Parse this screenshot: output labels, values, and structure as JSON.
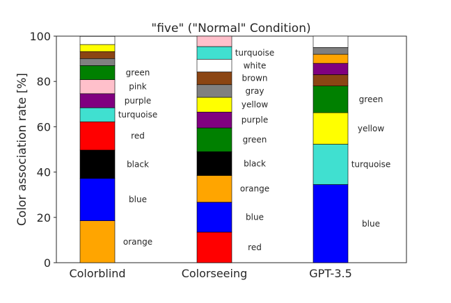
{
  "chart_data": {
    "type": "bar",
    "stacked": true,
    "title": "\"five\" (\"Normal\" Condition)",
    "xlabel": "",
    "ylabel": "Color association rate [%]",
    "ylim": [
      0,
      100
    ],
    "yticks": [
      "0",
      "20",
      "40",
      "60",
      "80",
      "100"
    ],
    "grid": false,
    "categories": [
      "Colorblind",
      "Colorseeing",
      "GPT-3.5"
    ],
    "stacks": [
      {
        "category": "Colorblind",
        "segments": [
          {
            "label": "orange",
            "value": 18.5,
            "color": "#FFA500",
            "show_label": true
          },
          {
            "label": "blue",
            "value": 18.7,
            "color": "#0000FF",
            "show_label": true
          },
          {
            "label": "black",
            "value": 12.5,
            "color": "#000000",
            "show_label": true
          },
          {
            "label": "red",
            "value": 12.5,
            "color": "#FF0000",
            "show_label": true
          },
          {
            "label": "turquoise",
            "value": 6.2,
            "color": "#40E0D0",
            "show_label": true
          },
          {
            "label": "purple",
            "value": 6.2,
            "color": "#800080",
            "show_label": true
          },
          {
            "label": "pink",
            "value": 6.2,
            "color": "#FFC0CB",
            "show_label": true
          },
          {
            "label": "green",
            "value": 6.2,
            "color": "#008000",
            "show_label": true
          },
          {
            "label": "gray",
            "value": 3.1,
            "color": "#808080",
            "show_label": false
          },
          {
            "label": "brown",
            "value": 3.1,
            "color": "#8B4513",
            "show_label": false
          },
          {
            "label": "yellow",
            "value": 3.1,
            "color": "#FFFF00",
            "show_label": false
          },
          {
            "label": "white",
            "value": 3.6,
            "color": "#FFFFFF",
            "show_label": false
          }
        ]
      },
      {
        "category": "Colorseeing",
        "segments": [
          {
            "label": "red",
            "value": 13.5,
            "color": "#FF0000",
            "show_label": true
          },
          {
            "label": "blue",
            "value": 13.2,
            "color": "#0000FF",
            "show_label": true
          },
          {
            "label": "orange",
            "value": 11.8,
            "color": "#FFA500",
            "show_label": true
          },
          {
            "label": "black",
            "value": 10.5,
            "color": "#000000",
            "show_label": true
          },
          {
            "label": "green",
            "value": 10.5,
            "color": "#008000",
            "show_label": true
          },
          {
            "label": "purple",
            "value": 7.0,
            "color": "#800080",
            "show_label": true
          },
          {
            "label": "yellow",
            "value": 6.5,
            "color": "#FFFF00",
            "show_label": true
          },
          {
            "label": "gray",
            "value": 5.6,
            "color": "#808080",
            "show_label": true
          },
          {
            "label": "brown",
            "value": 5.6,
            "color": "#8B4513",
            "show_label": true
          },
          {
            "label": "white",
            "value": 5.6,
            "color": "#FFFFFF",
            "show_label": true
          },
          {
            "label": "turquoise",
            "value": 5.6,
            "color": "#40E0D0",
            "show_label": true
          },
          {
            "label": "pink",
            "value": 4.6,
            "color": "#FFC0CB",
            "show_label": false
          }
        ]
      },
      {
        "category": "GPT-3.5",
        "segments": [
          {
            "label": "blue",
            "value": 34.5,
            "color": "#0000FF",
            "show_label": true
          },
          {
            "label": "turquoise",
            "value": 17.8,
            "color": "#40E0D0",
            "show_label": true
          },
          {
            "label": "yellow",
            "value": 13.9,
            "color": "#FFFF00",
            "show_label": true
          },
          {
            "label": "green",
            "value": 11.8,
            "color": "#008000",
            "show_label": true
          },
          {
            "label": "brown",
            "value": 5.0,
            "color": "#8B4513",
            "show_label": false
          },
          {
            "label": "purple",
            "value": 5.0,
            "color": "#800080",
            "show_label": false
          },
          {
            "label": "orange",
            "value": 4.0,
            "color": "#FFA500",
            "show_label": false
          },
          {
            "label": "gray",
            "value": 3.0,
            "color": "#808080",
            "show_label": false
          },
          {
            "label": "white",
            "value": 5.0,
            "color": "#FFFFFF",
            "show_label": false
          }
        ]
      }
    ]
  }
}
